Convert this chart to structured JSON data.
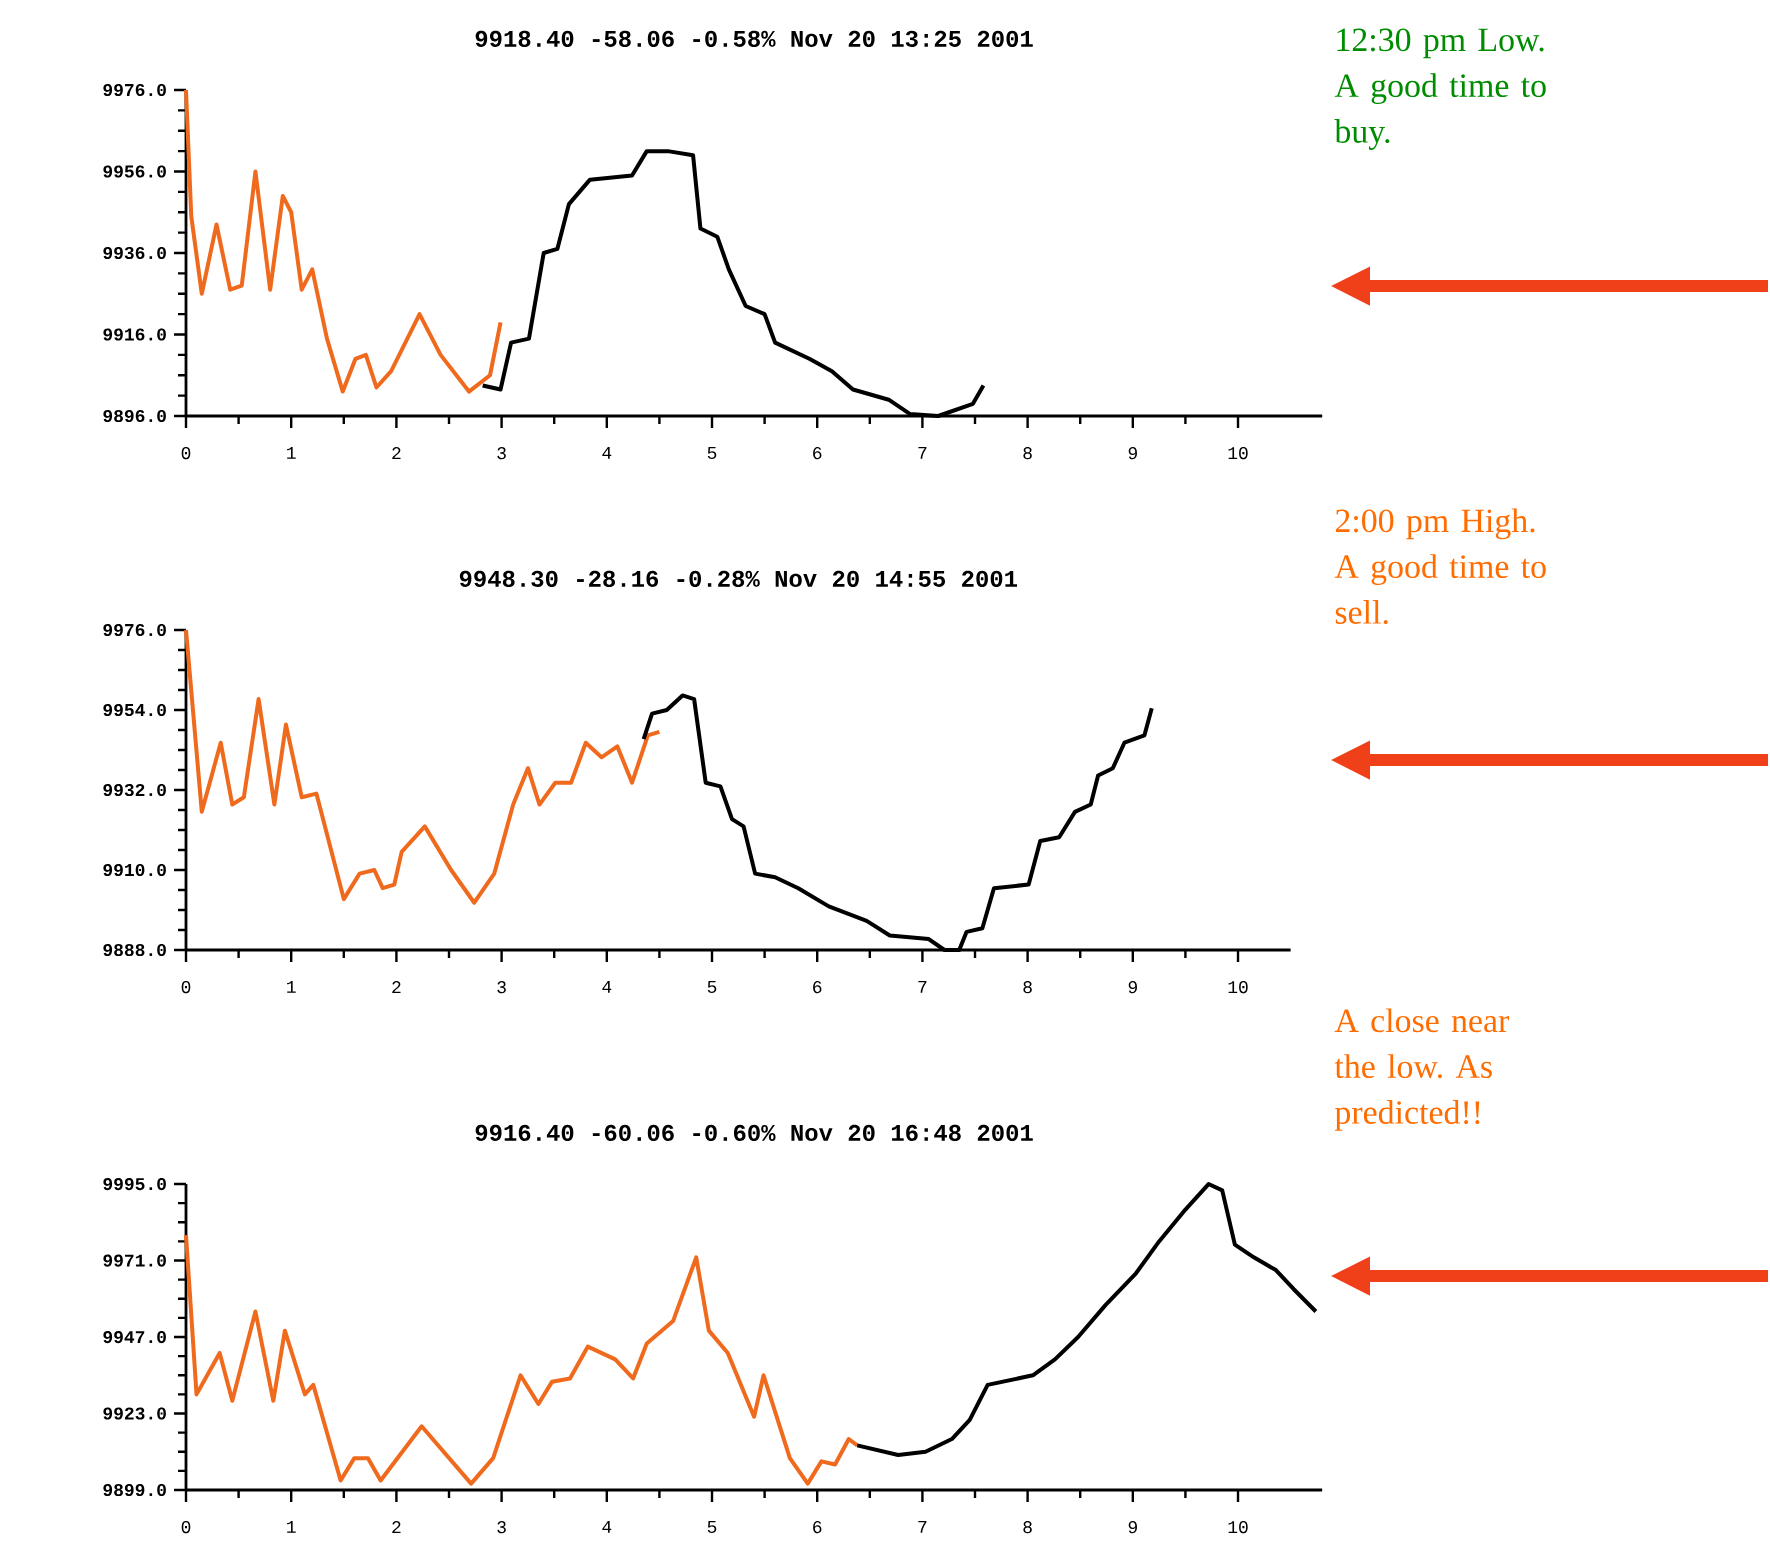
{
  "chart_data": [
    {
      "type": "line",
      "title": "9918.40 -58.06 -0.58% Nov 20 13:25 2001",
      "xlim": [
        0,
        10.8
      ],
      "ylim": [
        9896,
        9976
      ],
      "xticks": [
        0,
        1,
        2,
        3,
        4,
        5,
        6,
        7,
        8,
        9,
        10
      ],
      "yticks": [
        {
          "value": 9896,
          "label": "9896.0"
        },
        {
          "value": 9916,
          "label": "9916.0"
        },
        {
          "value": 9936,
          "label": "9936.0"
        },
        {
          "value": 9956,
          "label": "9956.0"
        },
        {
          "value": 9976,
          "label": "9976.0"
        }
      ],
      "series": [
        {
          "color": "#f06a1e",
          "x": [
            0,
            0.05,
            0.15,
            0.29,
            0.42,
            0.53,
            0.66,
            0.8,
            0.92,
            1.0,
            1.1,
            1.2,
            1.34,
            1.49,
            1.61,
            1.71,
            1.81,
            1.95,
            2.22,
            2.42,
            2.69,
            2.89,
            2.99
          ],
          "values": [
            9976,
            9945,
            9926,
            9943,
            9927,
            9928,
            9956,
            9927,
            9950,
            9946,
            9927,
            9932,
            9915,
            9902,
            9910,
            9911,
            9903,
            9907,
            9921,
            9911,
            9902,
            9906,
            9919
          ]
        },
        {
          "color": "#000000",
          "x": [
            2.82,
            2.99,
            3.09,
            3.26,
            3.4,
            3.53,
            3.64,
            3.84,
            4.24,
            4.38,
            4.58,
            4.82,
            4.89,
            5.05,
            5.16,
            5.32,
            5.5,
            5.6,
            5.93,
            6.14,
            6.34,
            6.68,
            6.88,
            7.15,
            7.48,
            7.58
          ],
          "values": [
            9903.5,
            9902.5,
            9914,
            9915,
            9936,
            9937,
            9948,
            9954,
            9955,
            9961,
            9961,
            9960,
            9942,
            9940,
            9932,
            9923,
            9921,
            9914,
            9910,
            9907,
            9902.5,
            9900,
            9896.5,
            9896,
            9899,
            9903.5
          ]
        }
      ],
      "annotations": [
        "12:30 pm Low. A good time to buy."
      ]
    },
    {
      "type": "line",
      "title": "9948.30 -28.16 -0.28% Nov 20 14:55 2001",
      "xlim": [
        0,
        10.5
      ],
      "ylim": [
        9888,
        9976
      ],
      "xticks": [
        0,
        1,
        2,
        3,
        4,
        5,
        6,
        7,
        8,
        9,
        10
      ],
      "yticks": [
        {
          "value": 9888,
          "label": "9888.0"
        },
        {
          "value": 9910,
          "label": "9910.0"
        },
        {
          "value": 9932,
          "label": "9932.0"
        },
        {
          "value": 9954,
          "label": "9954.0"
        },
        {
          "value": 9976,
          "label": "9976.0"
        }
      ],
      "series": [
        {
          "color": "#f06a1e",
          "x": [
            0,
            0.15,
            0.33,
            0.44,
            0.55,
            0.69,
            0.84,
            0.95,
            1.1,
            1.24,
            1.5,
            1.65,
            1.79,
            1.87,
            1.98,
            2.05,
            2.27,
            2.52,
            2.74,
            2.93,
            3.11,
            3.25,
            3.36,
            3.51,
            3.66,
            3.8,
            3.95,
            4.1,
            4.24,
            4.39,
            4.5
          ],
          "values": [
            9976,
            9926,
            9945,
            9928,
            9930,
            9957,
            9928,
            9950,
            9930,
            9931,
            9902,
            9909,
            9910,
            9905,
            9906,
            9915,
            9922,
            9910,
            9901,
            9909,
            9928,
            9938,
            9928,
            9934,
            9934,
            9945,
            9941,
            9944,
            9934,
            9947,
            9948
          ]
        },
        {
          "color": "#000000",
          "x": [
            4.35,
            4.43,
            4.57,
            4.72,
            4.83,
            4.94,
            5.08,
            5.19,
            5.3,
            5.41,
            5.6,
            5.82,
            6.11,
            6.47,
            6.69,
            7.06,
            7.21,
            7.35,
            7.42,
            7.57,
            7.68,
            8.01,
            8.12,
            8.3,
            8.45,
            8.6,
            8.67,
            8.81,
            8.92,
            9.11,
            9.18
          ],
          "values": [
            9946,
            9953,
            9954,
            9958,
            9957,
            9934,
            9933,
            9924,
            9922,
            9909,
            9908,
            9905,
            9900,
            9896,
            9892,
            9891,
            9888,
            9888,
            9893,
            9894,
            9905,
            9906,
            9918,
            9919,
            9926,
            9928,
            9936,
            9938,
            9945,
            9947,
            9954.5
          ]
        }
      ],
      "annotations": [
        "2:00 pm High. A good time to sell."
      ]
    },
    {
      "type": "line",
      "title": "9916.40 -60.06 -0.60% Nov 20 16:48 2001",
      "xlim": [
        0,
        10.8
      ],
      "ylim": [
        9899,
        9995
      ],
      "xticks": [
        0,
        1,
        2,
        3,
        4,
        5,
        6,
        7,
        8,
        9,
        10
      ],
      "yticks": [
        {
          "value": 9899,
          "label": "9899.0"
        },
        {
          "value": 9923,
          "label": "9923.0"
        },
        {
          "value": 9947,
          "label": "9947.0"
        },
        {
          "value": 9971,
          "label": "9971.0"
        },
        {
          "value": 9995,
          "label": "9995.0"
        }
      ],
      "series": [
        {
          "color": "#f06a1e",
          "x": [
            0,
            0.1,
            0.32,
            0.44,
            0.66,
            0.83,
            0.94,
            1.13,
            1.21,
            1.47,
            1.6,
            1.73,
            1.85,
            2.24,
            2.71,
            2.92,
            3.18,
            3.35,
            3.48,
            3.65,
            3.82,
            4.08,
            4.25,
            4.38,
            4.63,
            4.85,
            4.97,
            5.15,
            5.4,
            5.49,
            5.74,
            5.91,
            6.04,
            6.17,
            6.3,
            6.38
          ],
          "values": [
            9979,
            9929,
            9942,
            9927,
            9955,
            9927,
            9949,
            9929,
            9932,
            9902,
            9909,
            9909,
            9902,
            9919,
            9901,
            9909,
            9935,
            9926,
            9933,
            9934,
            9944,
            9940,
            9934,
            9945,
            9952,
            9972,
            9949,
            9942,
            9922,
            9935,
            9909,
            9901,
            9908,
            9907,
            9915,
            9913
          ]
        },
        {
          "color": "#000000",
          "x": [
            6.38,
            6.77,
            7.03,
            7.28,
            7.45,
            7.62,
            8.05,
            8.26,
            8.48,
            8.74,
            9.03,
            9.25,
            9.5,
            9.72,
            9.85,
            9.97,
            10.15,
            10.36,
            10.53,
            10.74
          ],
          "values": [
            9913,
            9910,
            9911,
            9915,
            9921,
            9932,
            9935,
            9940,
            9947,
            9957,
            9967,
            9977,
            9987,
            9995,
            9993,
            9976,
            9972,
            9968,
            9962,
            9955
          ]
        }
      ],
      "annotations": [
        "A close near the low. As predicted!!"
      ]
    }
  ]
}
